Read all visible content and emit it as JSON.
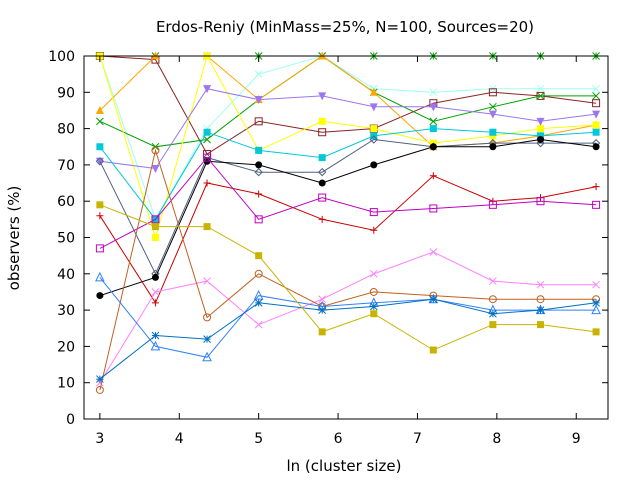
{
  "chart_data": {
    "type": "line",
    "title": "Erdos-Reniy (MinMass=25%, N=100, Sources=20)",
    "xlabel": "ln (cluster size)",
    "ylabel": "observers (%)",
    "xlim": [
      2.8,
      9.4
    ],
    "ylim": [
      0,
      100
    ],
    "xticks": [
      3,
      4,
      5,
      6,
      7,
      8,
      9
    ],
    "yticks": [
      0,
      10,
      20,
      30,
      40,
      50,
      60,
      70,
      80,
      90,
      100
    ],
    "grid": false,
    "legend": "none",
    "x": [
      3.0,
      3.7,
      4.35,
      5.0,
      5.8,
      6.45,
      7.2,
      7.95,
      8.55,
      9.25
    ],
    "series": [
      {
        "color": "#00a000",
        "marker": "asterisk",
        "values": [
          100,
          100,
          100,
          100,
          100,
          100,
          100,
          100,
          100,
          100
        ]
      },
      {
        "color": "#9fffee",
        "marker": "x",
        "values": [
          100,
          55,
          80,
          95,
          100,
          91,
          90,
          91,
          91,
          91
        ]
      },
      {
        "color": "#8b2323",
        "marker": "square-open",
        "values": [
          100,
          99,
          73,
          82,
          79,
          80,
          87,
          90,
          89,
          87
        ]
      },
      {
        "color": "#00a000",
        "marker": "x",
        "values": [
          82,
          75,
          77,
          88,
          100,
          90,
          82,
          86,
          89,
          89
        ]
      },
      {
        "color": "#ffa500",
        "marker": "triangle-filled",
        "values": [
          85,
          100,
          100,
          88,
          100,
          90,
          75,
          76,
          78,
          81
        ]
      },
      {
        "color": "#ffff00",
        "marker": "square-filled",
        "values": [
          100,
          50,
          100,
          74,
          82,
          80,
          76,
          78,
          80,
          81
        ]
      },
      {
        "color": "#9b76ee",
        "marker": "triangle-down",
        "values": [
          71,
          69,
          91,
          88,
          89,
          86,
          86,
          84,
          82,
          84
        ]
      },
      {
        "color": "#00c8d8",
        "marker": "square-filled",
        "values": [
          75,
          55,
          79,
          74,
          72,
          78,
          80,
          79,
          78,
          79
        ]
      },
      {
        "color": "#506080",
        "marker": "diamond-open",
        "values": [
          71,
          40,
          72,
          68,
          68,
          77,
          75,
          76,
          76,
          76
        ]
      },
      {
        "color": "#000000",
        "marker": "circle-filled",
        "values": [
          34,
          39,
          71,
          70,
          65,
          70,
          75,
          75,
          77,
          75
        ]
      },
      {
        "color": "#cc0000",
        "marker": "plus",
        "values": [
          56,
          32,
          65,
          62,
          55,
          52,
          67,
          60,
          61,
          64
        ]
      },
      {
        "color": "#c000c0",
        "marker": "square-open",
        "values": [
          47,
          55,
          72,
          55,
          61,
          57,
          58,
          59,
          60,
          59
        ]
      },
      {
        "color": "#ff80ff",
        "marker": "x",
        "values": [
          10,
          35,
          38,
          26,
          33,
          40,
          46,
          38,
          37,
          37
        ]
      },
      {
        "color": "#c06020",
        "marker": "circle-open",
        "values": [
          8,
          74,
          28,
          40,
          31,
          35,
          34,
          33,
          33,
          33
        ]
      },
      {
        "color": "#3080ff",
        "marker": "triangle-open",
        "values": [
          39,
          20,
          17,
          34,
          31,
          32,
          33,
          30,
          30,
          30
        ]
      },
      {
        "color": "#0070c0",
        "marker": "asterisk",
        "values": [
          11,
          23,
          22,
          32,
          30,
          31,
          33,
          29,
          30,
          32
        ]
      },
      {
        "color": "#c8b400",
        "marker": "square-filled",
        "values": [
          59,
          53,
          53,
          45,
          24,
          29,
          19,
          26,
          26,
          24
        ]
      }
    ]
  }
}
